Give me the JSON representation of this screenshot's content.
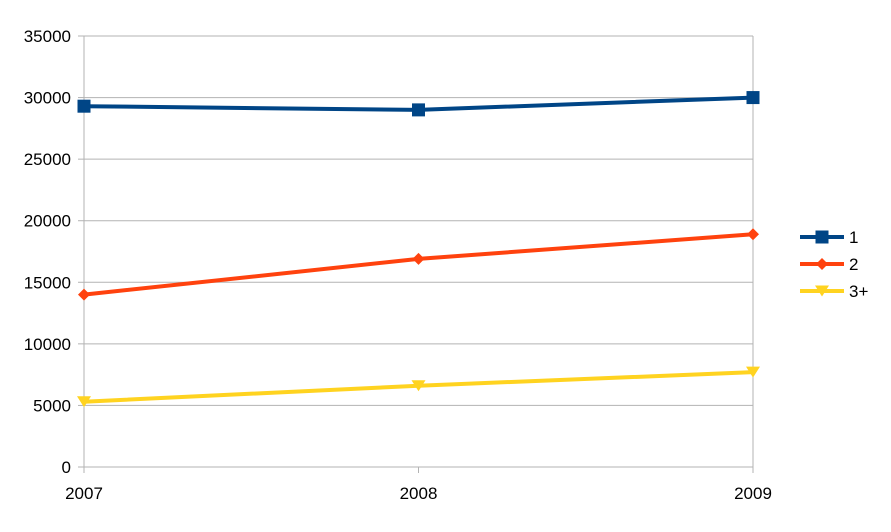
{
  "chart_data": {
    "type": "line",
    "title": "",
    "xlabel": "",
    "ylabel": "",
    "categories": [
      "2007",
      "2008",
      "2009"
    ],
    "ylim": [
      0,
      35000
    ],
    "yticks": [
      0,
      5000,
      10000,
      15000,
      20000,
      25000,
      30000,
      35000
    ],
    "grid": true,
    "legend_position": "right",
    "series": [
      {
        "name": "1",
        "values": [
          29300,
          29000,
          30000
        ],
        "color": "#004586",
        "marker": "square"
      },
      {
        "name": "2",
        "values": [
          14000,
          16900,
          18900
        ],
        "color": "#ff420e",
        "marker": "diamond"
      },
      {
        "name": "3+",
        "values": [
          5300,
          6600,
          7700
        ],
        "color": "#ffd320",
        "marker": "triangle-down"
      }
    ]
  }
}
